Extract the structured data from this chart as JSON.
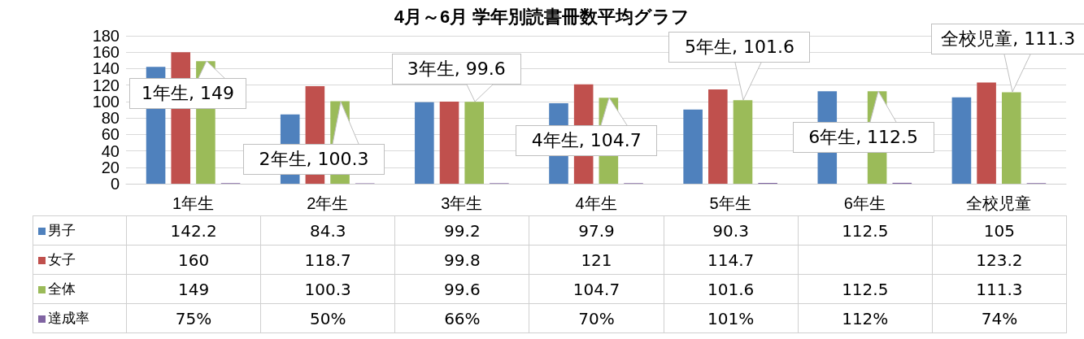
{
  "chart_data": {
    "type": "bar",
    "title": "4月～6月 学年別読書冊数平均グラフ",
    "categories": [
      "1年生",
      "2年生",
      "3年生",
      "4年生",
      "5年生",
      "6年生",
      "全校児童"
    ],
    "series": [
      {
        "name": "男子",
        "color": "#4f81bd",
        "values": [
          142.2,
          84.3,
          99.2,
          97.9,
          90.3,
          112.5,
          105
        ],
        "value_labels": [
          "142.2",
          "84.3",
          "99.2",
          "97.9",
          "90.3",
          "112.5",
          "105"
        ]
      },
      {
        "name": "女子",
        "color": "#c0504d",
        "values": [
          160,
          118.7,
          99.8,
          121,
          114.7,
          null,
          123.2
        ],
        "value_labels": [
          "160",
          "118.7",
          "99.8",
          "121",
          "114.7",
          null,
          "123.2"
        ]
      },
      {
        "name": "全体",
        "color": "#9bbb59",
        "values": [
          149,
          100.3,
          99.6,
          104.7,
          101.6,
          112.5,
          111.3
        ],
        "value_labels": [
          "149",
          "100.3",
          "99.6",
          "104.7",
          "101.6",
          "112.5",
          "111.3"
        ]
      },
      {
        "name": "達成率",
        "color": "#8064a2",
        "values": [
          0.75,
          0.5,
          0.66,
          0.7,
          1.01,
          1.12,
          0.74
        ],
        "value_labels": [
          "75%",
          "50%",
          "66%",
          "70%",
          "101%",
          "112%",
          "74%"
        ]
      }
    ],
    "ylim": [
      0,
      180
    ],
    "yticks": [
      0,
      20,
      40,
      60,
      80,
      100,
      120,
      140,
      160,
      180
    ],
    "grid": "y",
    "legend": "bottom left",
    "annotations": [
      {
        "text": "1年生, 149",
        "x": "1年生",
        "y": 149
      },
      {
        "text": "2年生, 100.3",
        "x": "2年生",
        "y": 100.3
      },
      {
        "text": "3年生, 99.6",
        "x": "3年生",
        "y": 99.6
      },
      {
        "text": "4年生, 104.7",
        "x": "4年生",
        "y": 104.7
      },
      {
        "text": "5年生, 101.6",
        "x": "5年生",
        "y": 101.6
      },
      {
        "text": "6年生, 112.5",
        "x": "6年生",
        "y": 112.5
      },
      {
        "text": "全校児童, 111.3",
        "x": "全校児童",
        "y": 111.3
      }
    ]
  }
}
